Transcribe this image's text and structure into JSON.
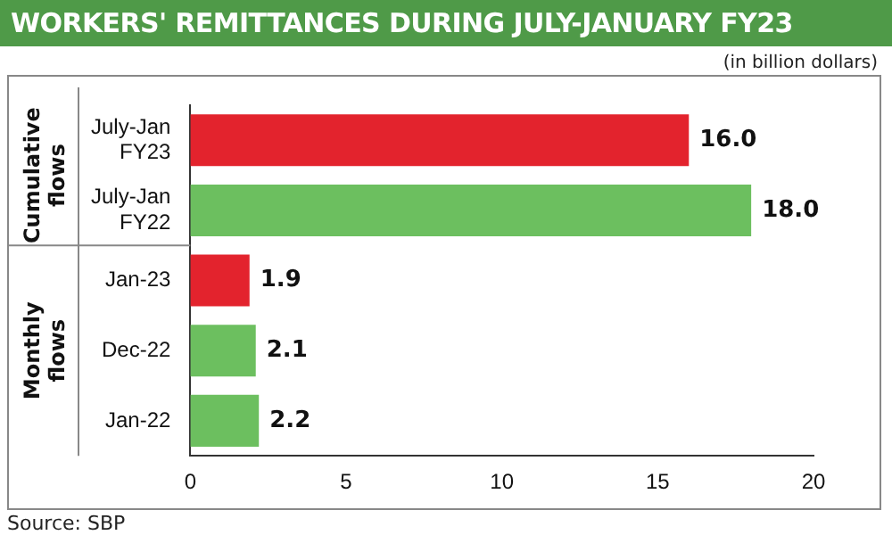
{
  "chart_data": {
    "type": "bar",
    "orientation": "horizontal",
    "title": "WORKERS' REMITTANCES DURING JULY-JANUARY FY23",
    "subtitle": "(in billion dollars)",
    "categories": [
      "July-Jan FY23",
      "July-Jan FY22",
      "Jan-23",
      "Dec-22",
      "Jan-22"
    ],
    "values": [
      16.0,
      18.0,
      1.9,
      2.1,
      2.2
    ],
    "value_labels": [
      "16.0",
      "18.0",
      "1.9",
      "2.1",
      "2.2"
    ],
    "colors": [
      "#e3232d",
      "#6cbf5f",
      "#e3232d",
      "#6cbf5f",
      "#6cbf5f"
    ],
    "xlim": [
      0,
      20
    ],
    "xticks": [
      0,
      5,
      10,
      15,
      20
    ],
    "grid": false,
    "legend": false,
    "annotations": [
      "Cumulative flows",
      "Monthly flows",
      "Source: SBP"
    ]
  }
}
